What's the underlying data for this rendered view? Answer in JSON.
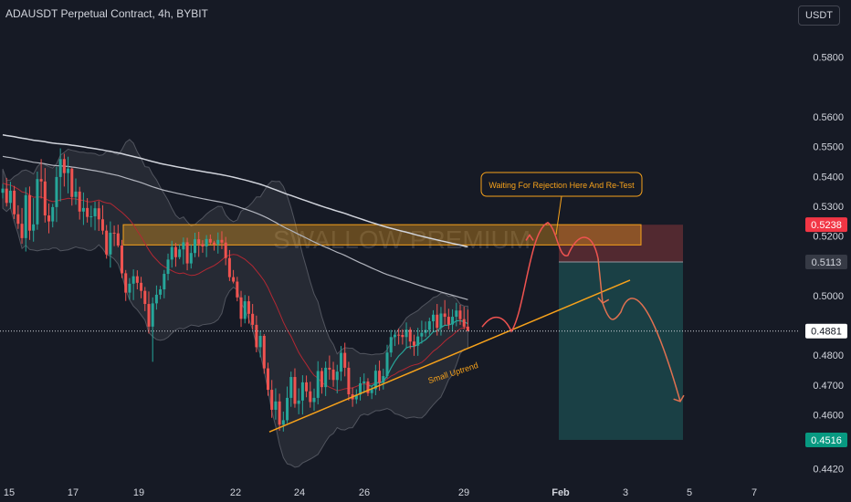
{
  "header": {
    "title": "ADAUSDT Perpetual Contract, 4h, BYBIT"
  },
  "currency_button": {
    "label": "USDT"
  },
  "colors": {
    "background": "#161a25",
    "up": "#26a69a",
    "down": "#ef5350",
    "zone": "#f7a21b",
    "arrow": "#ef5350",
    "trendline": "#f7a21b"
  },
  "chart_data": {
    "type": "candlestick",
    "watermark": "SWALLOW PREMIUM",
    "ylim": [
      0.4375,
      0.5955
    ],
    "yticks": [
      "0.5800",
      "0.5600",
      "0.5500",
      "0.5400",
      "0.5300",
      "0.5200",
      "0.5000",
      "0.4800",
      "0.4700",
      "0.4600",
      "0.4420"
    ],
    "xticks": [
      "15",
      "17",
      "19",
      "22",
      "24",
      "26",
      "29",
      "Feb",
      "3",
      "5",
      "7"
    ],
    "current_price": "0.4881",
    "price_labels": [
      {
        "value": "0.5238",
        "kind": "stop"
      },
      {
        "value": "0.5113",
        "kind": "entry"
      },
      {
        "value": "0.4881",
        "kind": "last"
      },
      {
        "value": "0.4516",
        "kind": "target"
      }
    ],
    "annotations": [
      {
        "text": "Waiting For Rejection Here And Re-Test"
      },
      {
        "text": "Small Uptrend"
      }
    ],
    "resistance_zone": [
      0.517,
      0.5238
    ],
    "short_position": {
      "entry": 0.5113,
      "stop": 0.5238,
      "target": 0.4516
    },
    "candles": [
      [
        0.5345,
        0.5375,
        0.5326,
        0.5359
      ],
      [
        0.5359,
        0.5395,
        0.5299,
        0.5311
      ],
      [
        0.5311,
        0.5382,
        0.5292,
        0.5352
      ],
      [
        0.5352,
        0.5368,
        0.5257,
        0.5273
      ],
      [
        0.5273,
        0.5303,
        0.5224,
        0.5241
      ],
      [
        0.5241,
        0.5294,
        0.5174,
        0.5193
      ],
      [
        0.5193,
        0.5363,
        0.5148,
        0.5337
      ],
      [
        0.5337,
        0.5366,
        0.5187,
        0.5218
      ],
      [
        0.5218,
        0.5327,
        0.5181,
        0.5239
      ],
      [
        0.5239,
        0.5416,
        0.5221,
        0.5391
      ],
      [
        0.5391,
        0.5458,
        0.5326,
        0.5383
      ],
      [
        0.5383,
        0.5428,
        0.5245,
        0.5269
      ],
      [
        0.5269,
        0.5309,
        0.5209,
        0.5249
      ],
      [
        0.5249,
        0.5308,
        0.5229,
        0.5297
      ],
      [
        0.5297,
        0.5432,
        0.5247,
        0.5398
      ],
      [
        0.5398,
        0.5494,
        0.5316,
        0.5458
      ],
      [
        0.5458,
        0.5476,
        0.5366,
        0.5411
      ],
      [
        0.5411,
        0.5466,
        0.5343,
        0.5426
      ],
      [
        0.5426,
        0.5429,
        0.5302,
        0.5331
      ],
      [
        0.5331,
        0.5393,
        0.5305,
        0.5349
      ],
      [
        0.5349,
        0.5365,
        0.5255,
        0.5282
      ],
      [
        0.5282,
        0.5346,
        0.5237,
        0.5294
      ],
      [
        0.5294,
        0.5327,
        0.5245,
        0.5264
      ],
      [
        0.5264,
        0.5302,
        0.523,
        0.5266
      ],
      [
        0.5266,
        0.5315,
        0.5219,
        0.5293
      ],
      [
        0.5293,
        0.5317,
        0.5217,
        0.5256
      ],
      [
        0.5256,
        0.5303,
        0.5205,
        0.5218
      ],
      [
        0.5218,
        0.5237,
        0.5124,
        0.5138
      ],
      [
        0.5138,
        0.5249,
        0.5094,
        0.5211
      ],
      [
        0.5211,
        0.5235,
        0.5166,
        0.5209
      ],
      [
        0.5209,
        0.5238,
        0.5162,
        0.5168
      ],
      [
        0.5168,
        0.5187,
        0.5059,
        0.5075
      ],
      [
        0.5075,
        0.5086,
        0.4982,
        0.501
      ],
      [
        0.501,
        0.5059,
        0.4986,
        0.504
      ],
      [
        0.504,
        0.5088,
        0.4985,
        0.5065
      ],
      [
        0.5065,
        0.5085,
        0.5021,
        0.5043
      ],
      [
        0.5043,
        0.5063,
        0.4991,
        0.5016
      ],
      [
        0.5016,
        0.5029,
        0.4948,
        0.4972
      ],
      [
        0.4972,
        0.5014,
        0.4873,
        0.4896
      ],
      [
        0.4896,
        0.4994,
        0.4778,
        0.4974
      ],
      [
        0.4974,
        0.5034,
        0.4953,
        0.5003
      ],
      [
        0.5003,
        0.5033,
        0.4988,
        0.5021
      ],
      [
        0.5021,
        0.5086,
        0.4991,
        0.5073
      ],
      [
        0.5073,
        0.5141,
        0.5051,
        0.5121
      ],
      [
        0.5121,
        0.5184,
        0.5094,
        0.5163
      ],
      [
        0.5163,
        0.5177,
        0.5097,
        0.5129
      ],
      [
        0.5129,
        0.5172,
        0.5122,
        0.5155
      ],
      [
        0.5155,
        0.5195,
        0.5105,
        0.5179
      ],
      [
        0.5179,
        0.5194,
        0.5085,
        0.5108
      ],
      [
        0.5108,
        0.5171,
        0.5091,
        0.5143
      ],
      [
        0.5143,
        0.5211,
        0.5129,
        0.5189
      ],
      [
        0.5189,
        0.5214,
        0.513,
        0.5173
      ],
      [
        0.5173,
        0.5186,
        0.5144,
        0.5165
      ],
      [
        0.5165,
        0.5203,
        0.5129,
        0.519
      ],
      [
        0.519,
        0.5205,
        0.5171,
        0.5178
      ],
      [
        0.5178,
        0.5184,
        0.5151,
        0.5172
      ],
      [
        0.5172,
        0.5212,
        0.5141,
        0.5187
      ],
      [
        0.5187,
        0.5216,
        0.5156,
        0.5178
      ],
      [
        0.5178,
        0.5197,
        0.5102,
        0.5126
      ],
      [
        0.5126,
        0.5153,
        0.5049,
        0.5062
      ],
      [
        0.5062,
        0.5086,
        0.5041,
        0.5047
      ],
      [
        0.5047,
        0.5063,
        0.4981,
        0.4994
      ],
      [
        0.4994,
        0.5016,
        0.4895,
        0.4922
      ],
      [
        0.4922,
        0.5002,
        0.4907,
        0.4981
      ],
      [
        0.4981,
        0.4999,
        0.4906,
        0.4939
      ],
      [
        0.4939,
        0.4972,
        0.4886,
        0.4902
      ],
      [
        0.4902,
        0.4933,
        0.481,
        0.4827
      ],
      [
        0.4827,
        0.4883,
        0.4793,
        0.4865
      ],
      [
        0.4865,
        0.4871,
        0.4738,
        0.4756
      ],
      [
        0.4756,
        0.4775,
        0.4664,
        0.4684
      ],
      [
        0.4684,
        0.4717,
        0.459,
        0.4617
      ],
      [
        0.4617,
        0.4689,
        0.4584,
        0.4645
      ],
      [
        0.4645,
        0.4671,
        0.4547,
        0.4567
      ],
      [
        0.4567,
        0.4611,
        0.4544,
        0.4582
      ],
      [
        0.4582,
        0.4695,
        0.4572,
        0.4657
      ],
      [
        0.4657,
        0.4745,
        0.4627,
        0.4727
      ],
      [
        0.4727,
        0.4756,
        0.4624,
        0.4637
      ],
      [
        0.4637,
        0.4689,
        0.4602,
        0.4648
      ],
      [
        0.4648,
        0.4733,
        0.4601,
        0.4709
      ],
      [
        0.4709,
        0.4732,
        0.4659,
        0.4679
      ],
      [
        0.4679,
        0.4711,
        0.4624,
        0.4643
      ],
      [
        0.4643,
        0.4688,
        0.4614,
        0.4657
      ],
      [
        0.4657,
        0.478,
        0.4635,
        0.4747
      ],
      [
        0.4747,
        0.4758,
        0.4671,
        0.4693
      ],
      [
        0.4693,
        0.4779,
        0.4663,
        0.4758
      ],
      [
        0.4758,
        0.4799,
        0.4718,
        0.4752
      ],
      [
        0.4752,
        0.4778,
        0.4694,
        0.4717
      ],
      [
        0.4717,
        0.4768,
        0.4672,
        0.4745
      ],
      [
        0.4745,
        0.4831,
        0.4714,
        0.4808
      ],
      [
        0.4808,
        0.4842,
        0.4729,
        0.4758
      ],
      [
        0.4758,
        0.4778,
        0.4648,
        0.4669
      ],
      [
        0.4669,
        0.4692,
        0.4627,
        0.4652
      ],
      [
        0.4652,
        0.4686,
        0.4637,
        0.4668
      ],
      [
        0.4668,
        0.4727,
        0.4648,
        0.4706
      ],
      [
        0.4706,
        0.4739,
        0.4673,
        0.4712
      ],
      [
        0.4712,
        0.4723,
        0.4663,
        0.4673
      ],
      [
        0.4673,
        0.4697,
        0.4653,
        0.4686
      ],
      [
        0.4686,
        0.4768,
        0.4666,
        0.4748
      ],
      [
        0.4748,
        0.4782,
        0.4681,
        0.4708
      ],
      [
        0.4708,
        0.4755,
        0.4685,
        0.473
      ],
      [
        0.473,
        0.4835,
        0.4722,
        0.4809
      ],
      [
        0.4809,
        0.4885,
        0.4794,
        0.4861
      ],
      [
        0.4861,
        0.4885,
        0.4831,
        0.4869
      ],
      [
        0.4869,
        0.4889,
        0.4836,
        0.4868
      ],
      [
        0.4868,
        0.4887,
        0.4836,
        0.4861
      ],
      [
        0.4861,
        0.491,
        0.4823,
        0.4886
      ],
      [
        0.4886,
        0.4894,
        0.4821,
        0.4846
      ],
      [
        0.4846,
        0.4869,
        0.4798,
        0.4832
      ],
      [
        0.4832,
        0.4892,
        0.4798,
        0.4863
      ],
      [
        0.4863,
        0.4916,
        0.4839,
        0.4875
      ],
      [
        0.4875,
        0.4913,
        0.4861,
        0.4885
      ],
      [
        0.4885,
        0.4926,
        0.4869,
        0.4914
      ],
      [
        0.4914,
        0.4951,
        0.4877,
        0.4936
      ],
      [
        0.4936,
        0.4972,
        0.4866,
        0.4892
      ],
      [
        0.4892,
        0.4962,
        0.4866,
        0.494
      ],
      [
        0.494,
        0.4985,
        0.4902,
        0.4929
      ],
      [
        0.4929,
        0.4956,
        0.4887,
        0.4903
      ],
      [
        0.4903,
        0.4954,
        0.4881,
        0.4929
      ],
      [
        0.4929,
        0.4976,
        0.4897,
        0.495
      ],
      [
        0.495,
        0.4969,
        0.4902,
        0.4921
      ],
      [
        0.4921,
        0.4963,
        0.4887,
        0.4896
      ],
      [
        0.4896,
        0.4953,
        0.4885,
        0.4881
      ]
    ]
  }
}
